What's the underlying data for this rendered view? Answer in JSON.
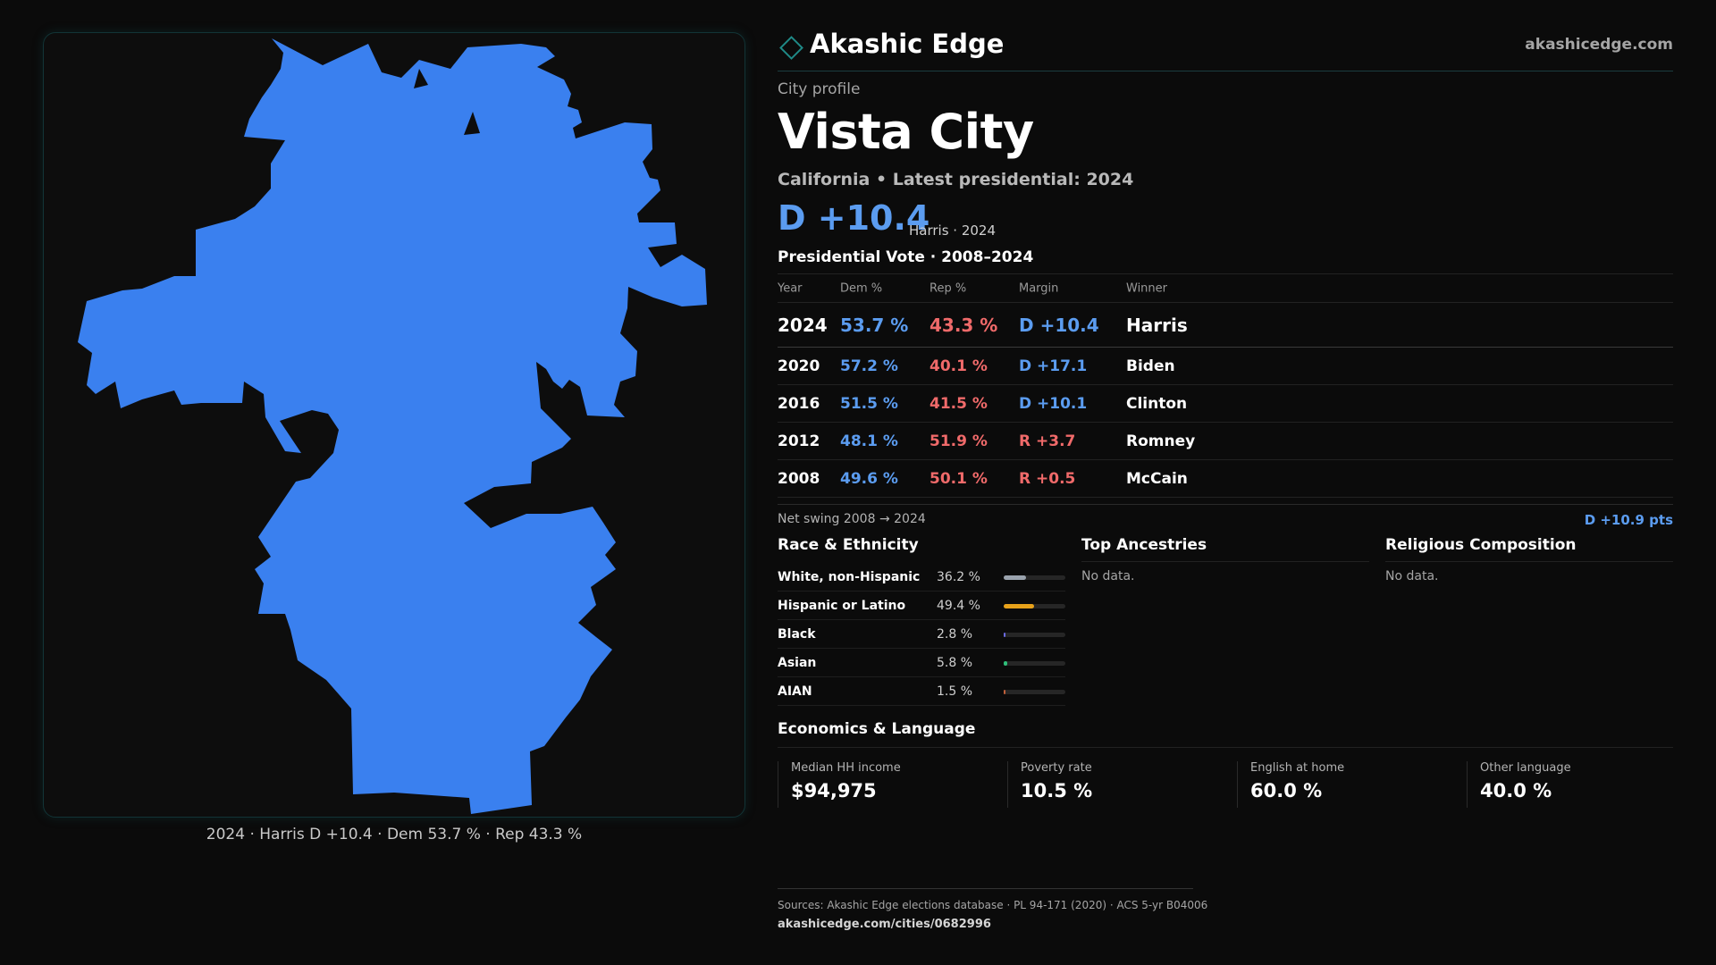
{
  "brand": {
    "name": "Akashic Edge",
    "url": "akashicedge.com"
  },
  "profile": {
    "eyebrow": "City profile",
    "city": "Vista City",
    "subtitle": "California • Latest presidential: 2024",
    "headline_margin": "D +10.4",
    "headline_sub": "Harris · 2024"
  },
  "map": {
    "caption": "2024 · Harris D +10.4 · Dem 53.7 % · Rep 43.3 %",
    "fill_color": "#3a80ef"
  },
  "votes": {
    "title": "Presidential Vote · 2008–2024",
    "headers": {
      "year": "Year",
      "dem": "Dem %",
      "rep": "Rep %",
      "margin": "Margin",
      "winner": "Winner"
    },
    "rows": [
      {
        "year": "2024",
        "dem": "53.7 %",
        "rep": "43.3 %",
        "margin": "D +10.4",
        "margin_party": "D",
        "winner": "Harris"
      },
      {
        "year": "2020",
        "dem": "57.2 %",
        "rep": "40.1 %",
        "margin": "D +17.1",
        "margin_party": "D",
        "winner": "Biden"
      },
      {
        "year": "2016",
        "dem": "51.5 %",
        "rep": "41.5 %",
        "margin": "D +10.1",
        "margin_party": "D",
        "winner": "Clinton"
      },
      {
        "year": "2012",
        "dem": "48.1 %",
        "rep": "51.9 %",
        "margin": "R +3.7",
        "margin_party": "R",
        "winner": "Romney"
      },
      {
        "year": "2008",
        "dem": "49.6 %",
        "rep": "50.1 %",
        "margin": "R +0.5",
        "margin_party": "R",
        "winner": "McCain"
      }
    ],
    "swing_label": "Net swing 2008 → 2024",
    "swing_value": "D +10.9 pts"
  },
  "race": {
    "title": "Race & Ethnicity",
    "rows": [
      {
        "label": "White, non-Hispanic",
        "pct": "36.2 %",
        "share": 0.362,
        "color": "#9aa3ad"
      },
      {
        "label": "Hispanic or Latino",
        "pct": "49.4 %",
        "share": 0.494,
        "color": "#e8a21a"
      },
      {
        "label": "Black",
        "pct": "2.8 %",
        "share": 0.028,
        "color": "#6a6ae0"
      },
      {
        "label": "Asian",
        "pct": "5.8 %",
        "share": 0.058,
        "color": "#2fbf7a"
      },
      {
        "label": "AIAN",
        "pct": "1.5 %",
        "share": 0.015,
        "color": "#c0603a"
      }
    ]
  },
  "ancestries": {
    "title": "Top Ancestries",
    "empty": "No data."
  },
  "religion": {
    "title": "Religious Composition",
    "empty": "No data."
  },
  "economics": {
    "title": "Economics & Language",
    "cells": [
      {
        "label": "Median HH income",
        "value": "$94,975"
      },
      {
        "label": "Poverty rate",
        "value": "10.5 %"
      },
      {
        "label": "English at home",
        "value": "60.0 %"
      },
      {
        "label": "Other language",
        "value": "40.0 %"
      }
    ]
  },
  "footer": {
    "sources": "Sources: Akashic Edge elections database · PL 94-171 (2020) · ACS 5-yr B04006",
    "url": "akashicedge.com/cities/0682996"
  }
}
